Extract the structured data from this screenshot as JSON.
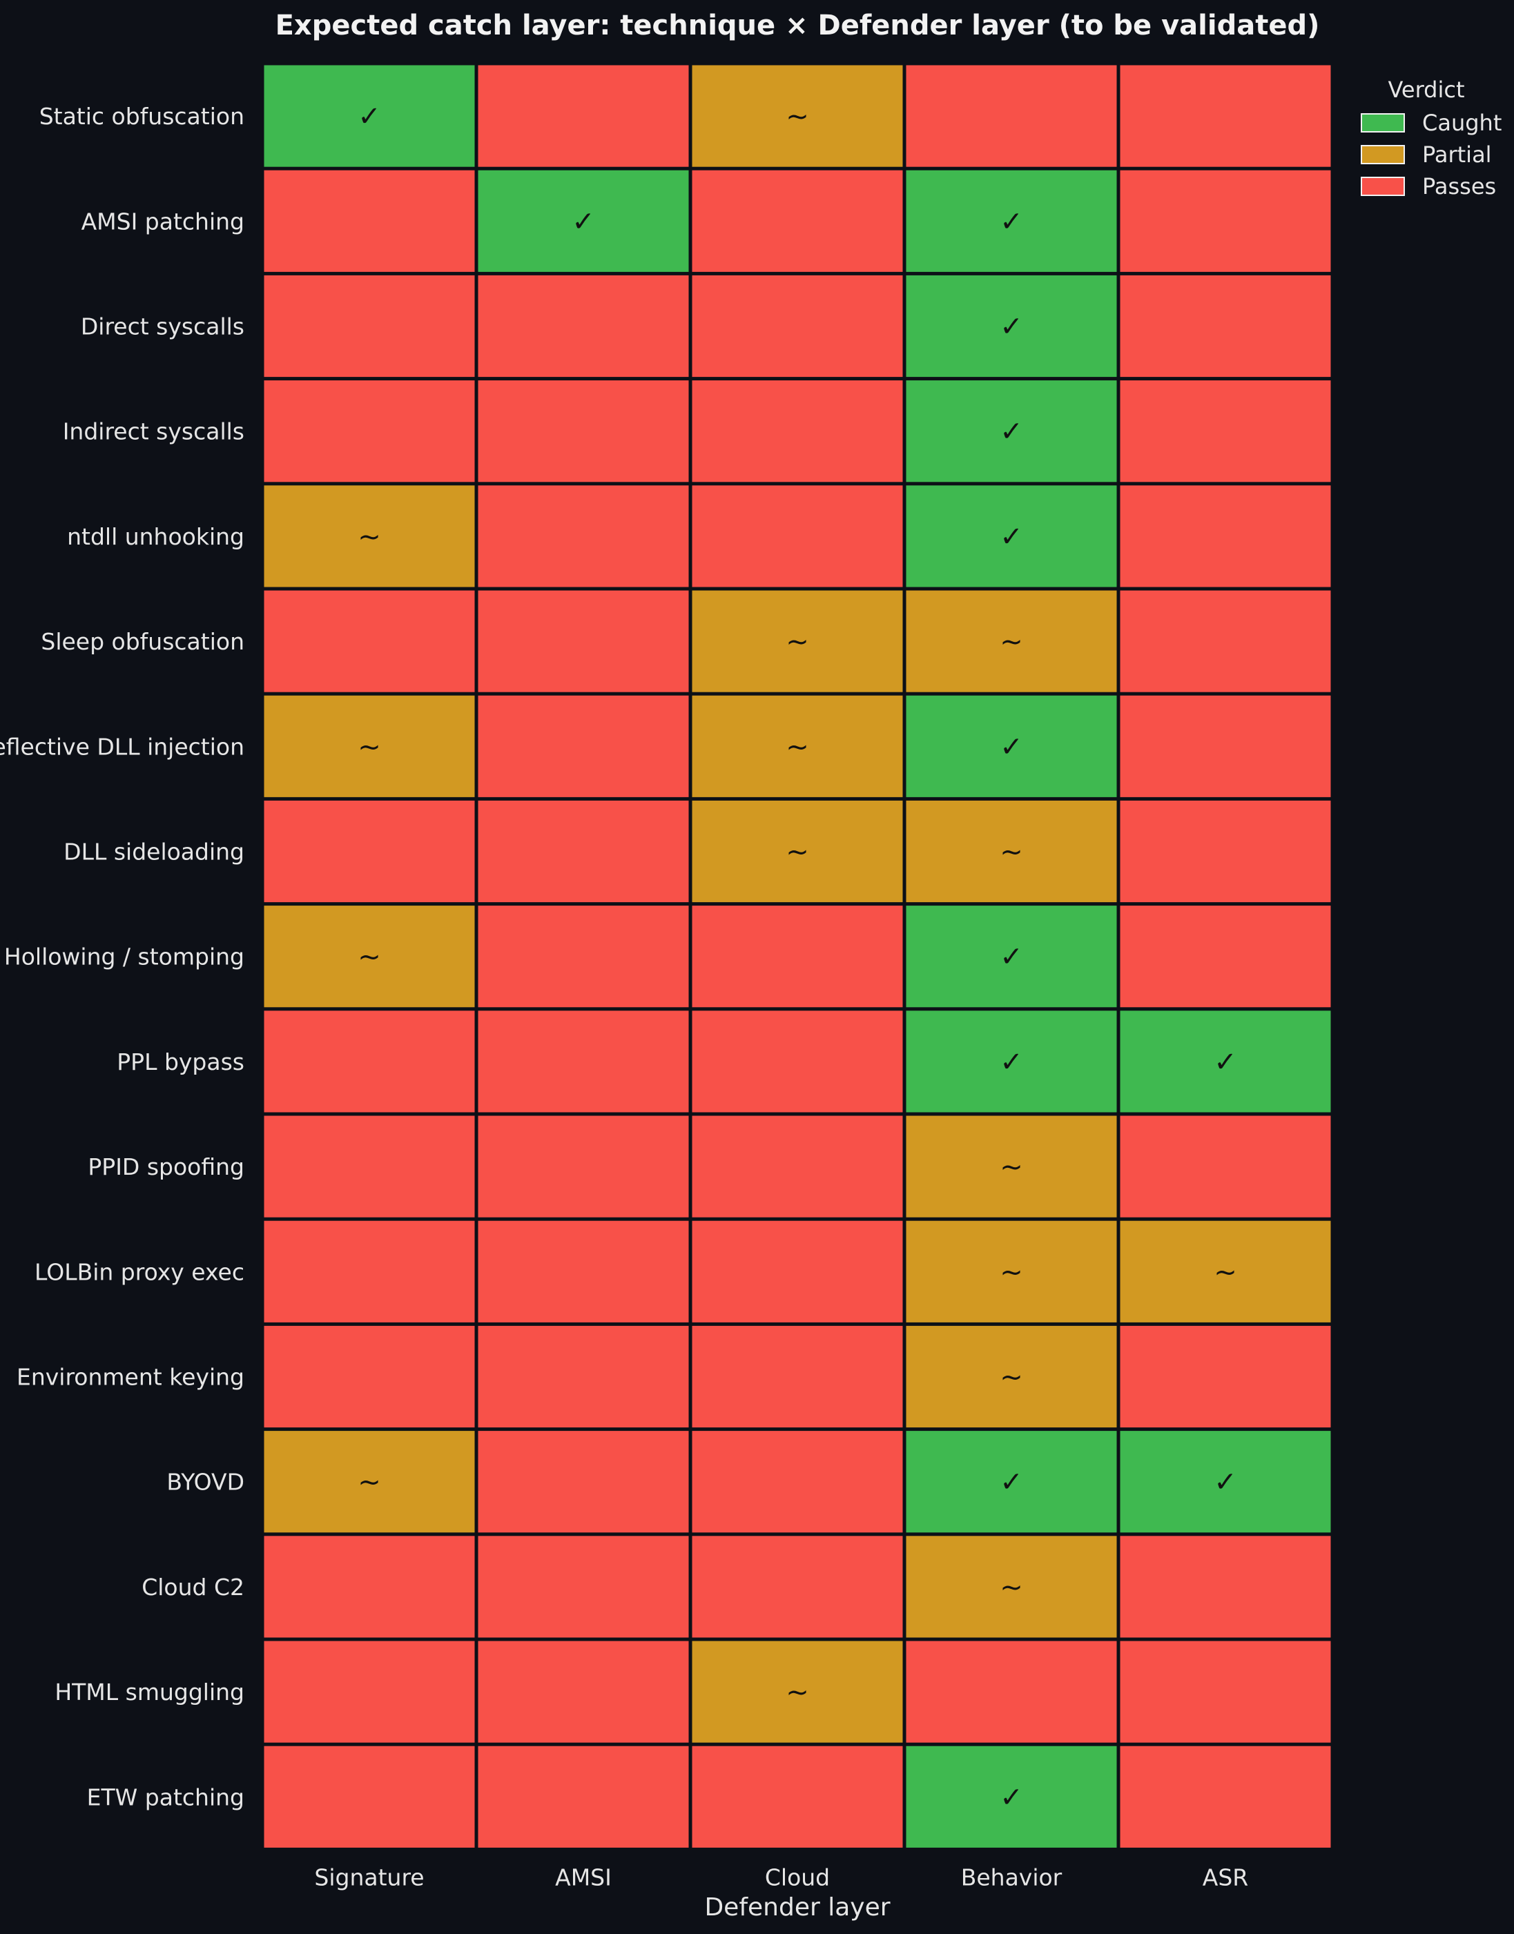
{
  "chart_data": {
    "type": "heatmap",
    "title": "Expected catch layer: technique × Defender layer (to be validated)",
    "xlabel": "Defender layer",
    "ylabel": "",
    "columns": [
      "Signature",
      "AMSI",
      "Cloud",
      "Behavior",
      "ASR"
    ],
    "rows": [
      "Static obfuscation",
      "AMSI patching",
      "Direct syscalls",
      "Indirect syscalls",
      "ntdll unhooking",
      "Sleep obfuscation",
      "Reflective DLL injection",
      "DLL sideloading",
      "Hollowing / stomping",
      "PPL bypass",
      "PPID spoofing",
      "LOLBin proxy exec",
      "Environment keying",
      "BYOVD",
      "Cloud C2",
      "HTML smuggling",
      "ETW patching"
    ],
    "values": [
      [
        "Caught",
        "Passes",
        "Partial",
        "Passes",
        "Passes"
      ],
      [
        "Passes",
        "Caught",
        "Passes",
        "Caught",
        "Passes"
      ],
      [
        "Passes",
        "Passes",
        "Passes",
        "Caught",
        "Passes"
      ],
      [
        "Passes",
        "Passes",
        "Passes",
        "Caught",
        "Passes"
      ],
      [
        "Partial",
        "Passes",
        "Passes",
        "Caught",
        "Passes"
      ],
      [
        "Passes",
        "Passes",
        "Partial",
        "Partial",
        "Passes"
      ],
      [
        "Partial",
        "Passes",
        "Partial",
        "Caught",
        "Passes"
      ],
      [
        "Passes",
        "Passes",
        "Partial",
        "Partial",
        "Passes"
      ],
      [
        "Partial",
        "Passes",
        "Passes",
        "Caught",
        "Passes"
      ],
      [
        "Passes",
        "Passes",
        "Passes",
        "Caught",
        "Caught"
      ],
      [
        "Passes",
        "Passes",
        "Passes",
        "Partial",
        "Passes"
      ],
      [
        "Passes",
        "Passes",
        "Passes",
        "Partial",
        "Partial"
      ],
      [
        "Passes",
        "Passes",
        "Passes",
        "Partial",
        "Passes"
      ],
      [
        "Partial",
        "Passes",
        "Passes",
        "Caught",
        "Caught"
      ],
      [
        "Passes",
        "Passes",
        "Passes",
        "Partial",
        "Passes"
      ],
      [
        "Passes",
        "Passes",
        "Partial",
        "Passes",
        "Passes"
      ],
      [
        "Passes",
        "Passes",
        "Passes",
        "Caught",
        "Passes"
      ]
    ],
    "categories": [
      "Caught",
      "Partial",
      "Passes"
    ],
    "colors": {
      "Caught": "#3fb950",
      "Partial": "#d29922",
      "Passes": "#f85149"
    },
    "marks": {
      "Caught": "✓",
      "Partial": "~",
      "Passes": ""
    },
    "legend": {
      "title": "Verdict",
      "position": "top-right"
    },
    "grid": false
  },
  "theme": {
    "background": "#0d1017",
    "cell_border": "#0d1017"
  }
}
